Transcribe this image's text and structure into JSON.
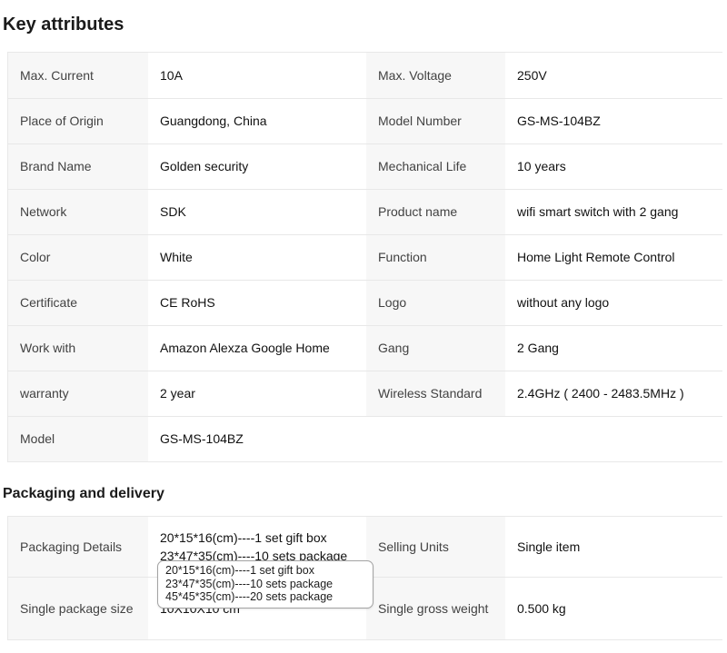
{
  "key_attributes": {
    "title": "Key attributes",
    "rows": [
      [
        {
          "label": "Max. Current",
          "value": "10A"
        },
        {
          "label": "Max. Voltage",
          "value": "250V"
        }
      ],
      [
        {
          "label": "Place of Origin",
          "value": "Guangdong, China"
        },
        {
          "label": "Model Number",
          "value": "GS-MS-104BZ"
        }
      ],
      [
        {
          "label": "Brand Name",
          "value": "Golden security"
        },
        {
          "label": "Mechanical Life",
          "value": "10 years"
        }
      ],
      [
        {
          "label": "Network",
          "value": "SDK"
        },
        {
          "label": "Product name",
          "value": "wifi smart switch with 2 gang"
        }
      ],
      [
        {
          "label": "Color",
          "value": "White"
        },
        {
          "label": "Function",
          "value": "Home Light Remote Control"
        }
      ],
      [
        {
          "label": "Certificate",
          "value": "CE RoHS"
        },
        {
          "label": "Logo",
          "value": "without any logo"
        }
      ],
      [
        {
          "label": "Work with",
          "value": "Amazon Alexza Google Home"
        },
        {
          "label": "Gang",
          "value": "2 Gang"
        }
      ],
      [
        {
          "label": "warranty",
          "value": "2 year"
        },
        {
          "label": "Wireless Standard",
          "value": "2.4GHz ( 2400 - 2483.5MHz )"
        }
      ],
      [
        {
          "label": "Model",
          "value": "GS-MS-104BZ"
        },
        null
      ]
    ]
  },
  "packaging": {
    "title": "Packaging and delivery",
    "rows": [
      [
        {
          "label": "Packaging Details",
          "value": "20*15*16(cm)----1 set gift box 23*47*35(cm)----10 sets package 45*45*35(cm)----20 sets package",
          "clamp": true
        },
        {
          "label": "Selling Units",
          "value": "Single item"
        }
      ],
      [
        {
          "label": "Single package size",
          "value": "10X10X10 cm"
        },
        {
          "label": "Single gross weight",
          "value": "0.500 kg"
        }
      ]
    ]
  },
  "tooltip": {
    "lines": [
      "20*15*16(cm)----1 set gift box",
      "23*47*35(cm)----10 sets package",
      "45*45*35(cm)----20 sets package"
    ]
  },
  "colors": {
    "label_cell_bg": "#f7f7f7",
    "table_border": "#e8e8e8",
    "tooltip_border": "#a3a3a3",
    "heading_text": "#1b1b1b",
    "label_text": "#424242",
    "value_text": "#111111"
  }
}
